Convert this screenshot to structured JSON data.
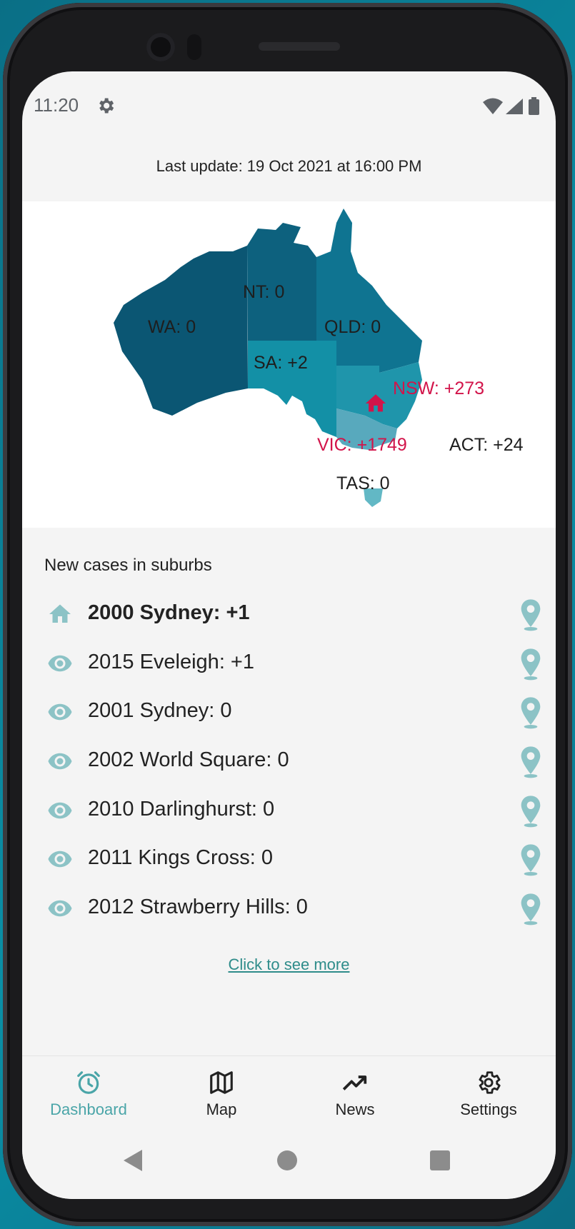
{
  "status_bar": {
    "time": "11:20"
  },
  "header": {
    "last_update": "Last update: 19 Oct 2021 at 16:00 PM"
  },
  "map": {
    "states": {
      "nt": "NT: 0",
      "wa": "WA: 0",
      "qld": "QLD: 0",
      "sa": "SA: +2",
      "nsw": "NSW: +273",
      "vic": "VIC: +1749",
      "act": "ACT: +24",
      "tas": "TAS: 0"
    },
    "colors": {
      "wa": "#0b5673",
      "nt": "#0d617e",
      "qld": "#0f7491",
      "sa": "#1390a6",
      "nsw": "#1f95ab",
      "vic": "#58a9bd",
      "tas": "#62b8c5",
      "highlight": "#d2144a"
    }
  },
  "suburbs": {
    "title": "New cases in suburbs",
    "items": [
      {
        "label": "2000 Sydney: +1",
        "icon": "home-icon"
      },
      {
        "label": "2015 Eveleigh: +1",
        "icon": "eye-icon"
      },
      {
        "label": "2001 Sydney: 0",
        "icon": "eye-icon"
      },
      {
        "label": "2002 World Square: 0",
        "icon": "eye-icon"
      },
      {
        "label": "2010 Darlinghurst: 0",
        "icon": "eye-icon"
      },
      {
        "label": "2011 Kings Cross: 0",
        "icon": "eye-icon"
      },
      {
        "label": "2012 Strawberry Hills: 0",
        "icon": "eye-icon"
      }
    ],
    "see_more": "Click to see more"
  },
  "bottom_nav": {
    "items": [
      {
        "label": "Dashboard",
        "icon": "alarm-clock-icon",
        "active": true
      },
      {
        "label": "Map",
        "icon": "map-icon",
        "active": false
      },
      {
        "label": "News",
        "icon": "trending-up-icon",
        "active": false
      },
      {
        "label": "Settings",
        "icon": "gear-icon",
        "active": false
      }
    ]
  },
  "accent_color": "#4aa5a8"
}
